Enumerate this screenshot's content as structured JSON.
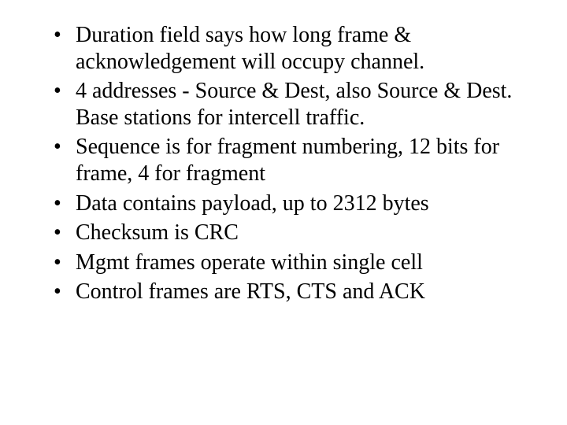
{
  "slide": {
    "background_color": "#ffffff",
    "text_color": "#000000",
    "font_family": "Times New Roman",
    "bullet_fontsize_pt": 21,
    "bullets": [
      "Duration field says how long frame & acknowledgement will occupy channel.",
      "4 addresses - Source & Dest, also Source & Dest. Base stations for intercell traffic.",
      "Sequence is for fragment numbering, 12 bits for frame, 4 for fragment",
      "Data contains payload, up to 2312 bytes",
      "Checksum is CRC",
      "Mgmt frames operate within single cell",
      "Control frames are RTS, CTS and ACK"
    ]
  }
}
